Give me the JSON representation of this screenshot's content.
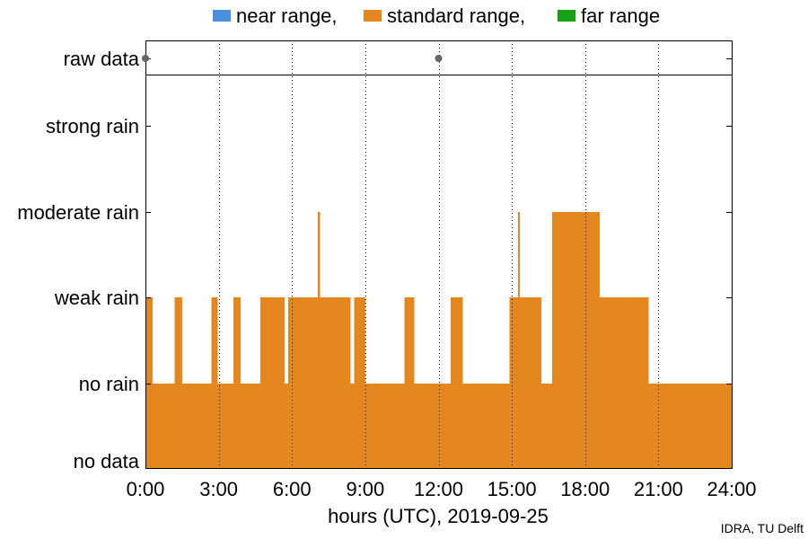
{
  "chart_data": {
    "type": "bar",
    "xlabel": "hours (UTC), 2019-09-25",
    "xlim": [
      0,
      24
    ],
    "x_ticks": [
      "0:00",
      "3:00",
      "6:00",
      "9:00",
      "12:00",
      "15:00",
      "18:00",
      "21:00",
      "24:00"
    ],
    "y_categories": [
      "no data",
      "no rain",
      "weak rain",
      "moderate rain",
      "strong rain"
    ],
    "raw_panel_label": "raw data",
    "raw_data_points": [
      0,
      12
    ],
    "legend_position": "top-center",
    "grid": "vertical dotted",
    "series": [
      {
        "name": "near range,",
        "color": "#4a90e2",
        "segments": []
      },
      {
        "name": "standard range,",
        "color": "#e3871e",
        "segments": [
          {
            "start": 0.0,
            "end": 0.3,
            "level": 2
          },
          {
            "start": 0.3,
            "end": 1.2,
            "level": 1
          },
          {
            "start": 1.2,
            "end": 1.5,
            "level": 2
          },
          {
            "start": 1.5,
            "end": 2.7,
            "level": 1
          },
          {
            "start": 2.7,
            "end": 2.95,
            "level": 2
          },
          {
            "start": 2.95,
            "end": 3.6,
            "level": 1
          },
          {
            "start": 3.6,
            "end": 3.9,
            "level": 2
          },
          {
            "start": 3.9,
            "end": 4.7,
            "level": 1
          },
          {
            "start": 4.7,
            "end": 5.7,
            "level": 2
          },
          {
            "start": 5.7,
            "end": 5.85,
            "level": 1
          },
          {
            "start": 5.85,
            "end": 7.05,
            "level": 2
          },
          {
            "start": 7.05,
            "end": 7.15,
            "level": 3
          },
          {
            "start": 7.15,
            "end": 8.4,
            "level": 2
          },
          {
            "start": 8.4,
            "end": 8.55,
            "level": 1
          },
          {
            "start": 8.55,
            "end": 9.0,
            "level": 2
          },
          {
            "start": 9.0,
            "end": 10.6,
            "level": 1
          },
          {
            "start": 10.6,
            "end": 11.0,
            "level": 2
          },
          {
            "start": 11.0,
            "end": 12.5,
            "level": 1
          },
          {
            "start": 12.5,
            "end": 13.0,
            "level": 2
          },
          {
            "start": 13.0,
            "end": 14.9,
            "level": 1
          },
          {
            "start": 14.9,
            "end": 15.25,
            "level": 2
          },
          {
            "start": 15.25,
            "end": 15.32,
            "level": 3
          },
          {
            "start": 15.32,
            "end": 16.2,
            "level": 2
          },
          {
            "start": 16.2,
            "end": 16.65,
            "level": 1
          },
          {
            "start": 16.65,
            "end": 18.6,
            "level": 3
          },
          {
            "start": 18.6,
            "end": 20.6,
            "level": 2
          },
          {
            "start": 20.6,
            "end": 24.0,
            "level": 1
          }
        ]
      },
      {
        "name": "far range",
        "color": "#16a016",
        "segments": []
      }
    ]
  },
  "credit": "IDRA, TU Delft"
}
